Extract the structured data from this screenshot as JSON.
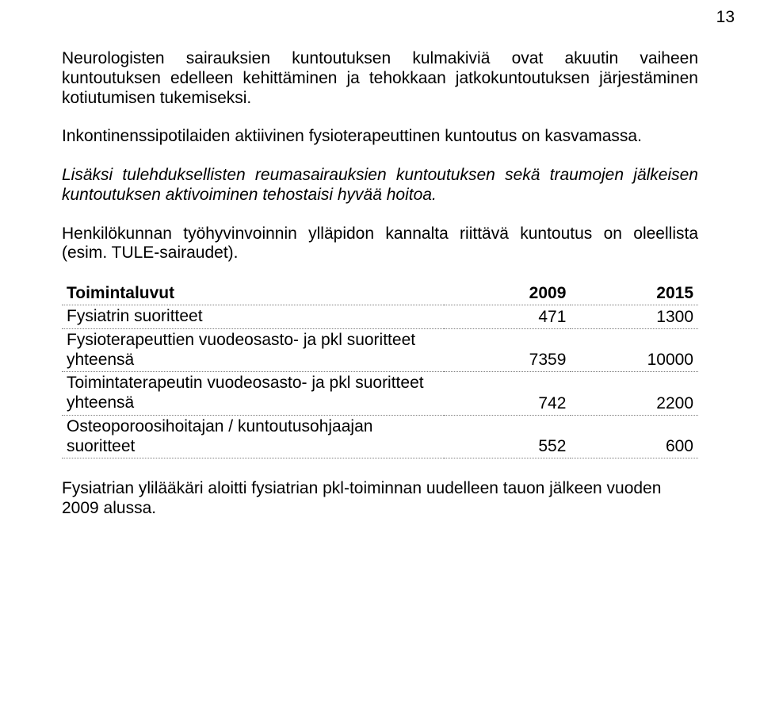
{
  "page_number": "13",
  "paragraphs": {
    "p1": "Neurologisten sairauksien kuntoutuksen kulmakiviä ovat akuutin vaiheen kuntoutuksen edelleen kehittäminen ja tehokkaan jatkokuntoutuksen järjestäminen kotiutumisen tukemiseksi.",
    "p2": "Inkontinenssipotilaiden aktiivinen fysioterapeuttinen kuntoutus on kasvamassa.",
    "p3": "Lisäksi tulehduksellisten reumasairauksien kuntoutuksen sekä traumojen jälkeisen kuntoutuksen aktivoiminen tehostaisi hyvää hoitoa.",
    "p4": "Henkilökunnan työhyvinvoinnin ylläpidon kannalta riittävä kuntoutus on oleellista (esim. TULE-sairaudet).",
    "p5": "Fysiatrian ylilääkäri aloitti fysiatrian pkl-toiminnan uudelleen tauon jälkeen vuoden 2009 alussa."
  },
  "table": {
    "header": {
      "label": "Toimintaluvut",
      "col1": "2009",
      "col2": "2015"
    },
    "rows": [
      {
        "label": "Fysiatrin suoritteet",
        "v1": "471",
        "v2": "1300"
      },
      {
        "label": "Fysioterapeuttien vuodeosasto- ja pkl suoritteet yhteensä",
        "v1": "7359",
        "v2": "10000"
      },
      {
        "label": "Toimintaterapeutin vuodeosasto- ja pkl suoritteet yhteensä",
        "v1": "742",
        "v2": "2200"
      },
      {
        "label": "Osteoporoosihoitajan / kuntoutusohjaajan suoritteet",
        "v1": "552",
        "v2": "600"
      }
    ]
  }
}
